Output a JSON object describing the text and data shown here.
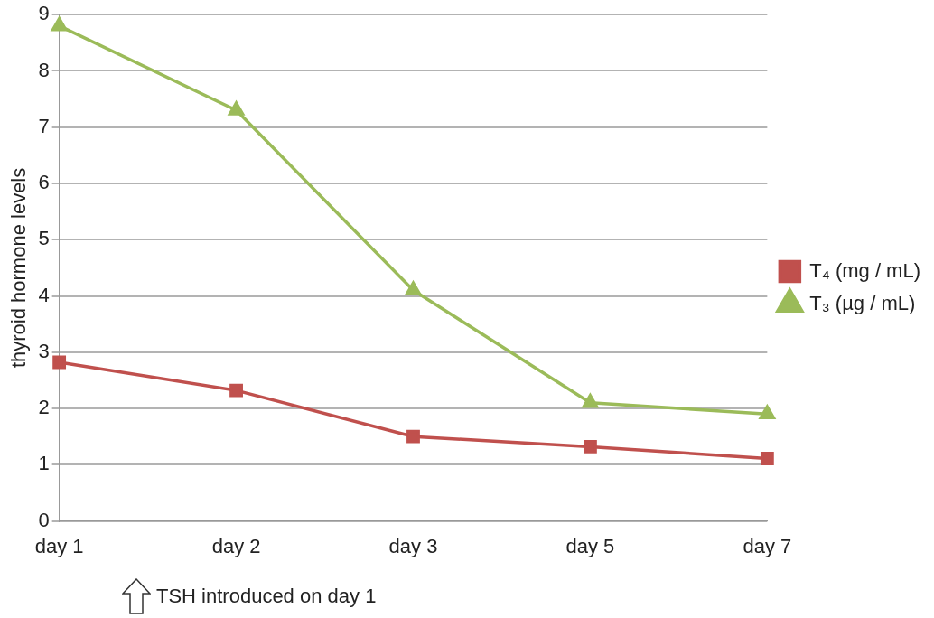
{
  "chart_data": {
    "type": "line",
    "ylabel": "thyroid hormone levels",
    "categories": [
      "day 1",
      "day 2",
      "day 3",
      "day 5",
      "day 7"
    ],
    "series": [
      {
        "name": "T₄ (mg / mL)",
        "color": "#c0504d",
        "marker": "square",
        "values": [
          2.82,
          2.32,
          1.5,
          1.32,
          1.11
        ]
      },
      {
        "name": "T₃ (µg / mL)",
        "color": "#9bbb59",
        "marker": "triangle",
        "values": [
          8.8,
          7.3,
          4.1,
          2.1,
          1.9
        ]
      }
    ],
    "ylim": [
      0,
      9
    ],
    "yticks": [
      0,
      1,
      2,
      3,
      4,
      5,
      6,
      7,
      8,
      9
    ],
    "grid": "y",
    "legend": "right",
    "line_style": "solid",
    "annotations": [
      "TSH introduced on day 1"
    ]
  }
}
